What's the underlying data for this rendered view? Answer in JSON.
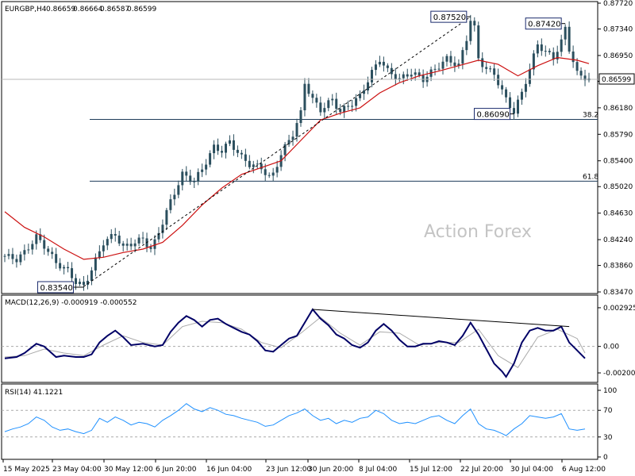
{
  "chart_data": [
    {
      "type": "candlestick",
      "header": {
        "symbol": "EURGBP,H4",
        "open": "0.86659",
        "high": "0.86664",
        "low": "0.86587",
        "close": "0.86599"
      },
      "watermark": "Action Forex",
      "current_price_label": "0.86599",
      "ylim": [
        0.8347,
        0.8772
      ],
      "y_ticks": [
        "0.87720",
        "0.87340",
        "0.86950",
        "0.86570",
        "0.86180",
        "0.85790",
        "0.85400",
        "0.85020",
        "0.84630",
        "0.84240",
        "0.83860",
        "0.83470"
      ],
      "x_ticks": [
        "15 May 2025",
        "23 May 04:00",
        "30 May 12:00",
        "6 Jun 20:00",
        "16 Jun 04:00",
        "23 Jun 12:00",
        "30 Jun 20:00",
        "8 Jul 04:00",
        "15 Jul 12:00",
        "22 Jul 20:00",
        "30 Jul 04:00",
        "6 Aug 12:00"
      ],
      "annotations": [
        {
          "text": "0.87520",
          "value": 0.8752
        },
        {
          "text": "0.87420",
          "value": 0.8742
        },
        {
          "text": "0.86090",
          "value": 0.8609
        },
        {
          "text": "0.83540",
          "value": 0.8354
        }
      ],
      "fib_levels": [
        {
          "label": "38.2",
          "value": 0.8601
        },
        {
          "label": "61.8",
          "value": 0.851
        }
      ],
      "price_path": [
        [
          0,
          0.84
        ],
        [
          3,
          0.8395
        ],
        [
          5,
          0.8405
        ],
        [
          8,
          0.8428
        ],
        [
          10,
          0.8415
        ],
        [
          13,
          0.839
        ],
        [
          16,
          0.8378
        ],
        [
          18,
          0.8362
        ],
        [
          20,
          0.8355
        ],
        [
          22,
          0.838
        ],
        [
          25,
          0.842
        ],
        [
          28,
          0.8432
        ],
        [
          30,
          0.8412
        ],
        [
          32,
          0.8418
        ],
        [
          35,
          0.8425
        ],
        [
          37,
          0.841
        ],
        [
          38,
          0.842
        ],
        [
          40,
          0.845
        ],
        [
          42,
          0.848
        ],
        [
          45,
          0.852
        ],
        [
          48,
          0.851
        ],
        [
          50,
          0.8528
        ],
        [
          53,
          0.856
        ],
        [
          55,
          0.8555
        ],
        [
          57,
          0.8568
        ],
        [
          60,
          0.8545
        ],
        [
          62,
          0.8535
        ],
        [
          65,
          0.853
        ],
        [
          67,
          0.8515
        ],
        [
          68,
          0.852
        ],
        [
          70,
          0.855
        ],
        [
          73,
          0.858
        ],
        [
          75,
          0.861
        ],
        [
          76,
          0.8655
        ],
        [
          78,
          0.863
        ],
        [
          80,
          0.8615
        ],
        [
          83,
          0.863
        ],
        [
          85,
          0.8612
        ],
        [
          88,
          0.8625
        ],
        [
          90,
          0.8635
        ],
        [
          93,
          0.867
        ],
        [
          95,
          0.869
        ],
        [
          97,
          0.8672
        ],
        [
          100,
          0.866
        ],
        [
          103,
          0.867
        ],
        [
          106,
          0.866
        ],
        [
          109,
          0.8675
        ],
        [
          112,
          0.869
        ],
        [
          115,
          0.868
        ],
        [
          117,
          0.872
        ],
        [
          118,
          0.8748
        ],
        [
          119,
          0.8735
        ],
        [
          120,
          0.869
        ],
        [
          122,
          0.8675
        ],
        [
          124,
          0.8668
        ],
        [
          127,
          0.863
        ],
        [
          129,
          0.8612
        ],
        [
          131,
          0.864
        ],
        [
          133,
          0.8675
        ],
        [
          135,
          0.8712
        ],
        [
          137,
          0.87
        ],
        [
          139,
          0.8692
        ],
        [
          141,
          0.8715
        ],
        [
          142,
          0.8735
        ],
        [
          143,
          0.8705
        ],
        [
          145,
          0.8668
        ],
        [
          147,
          0.8663
        ],
        [
          148,
          0.866
        ]
      ],
      "ma_path": [
        [
          0,
          0.8465
        ],
        [
          5,
          0.8442
        ],
        [
          10,
          0.8428
        ],
        [
          15,
          0.841
        ],
        [
          20,
          0.8395
        ],
        [
          25,
          0.8398
        ],
        [
          30,
          0.8405
        ],
        [
          35,
          0.841
        ],
        [
          40,
          0.842
        ],
        [
          45,
          0.8445
        ],
        [
          50,
          0.8475
        ],
        [
          55,
          0.85
        ],
        [
          60,
          0.852
        ],
        [
          65,
          0.853
        ],
        [
          70,
          0.854
        ],
        [
          75,
          0.857
        ],
        [
          80,
          0.86
        ],
        [
          85,
          0.861
        ],
        [
          90,
          0.8618
        ],
        [
          95,
          0.864
        ],
        [
          100,
          0.8655
        ],
        [
          105,
          0.8665
        ],
        [
          110,
          0.8672
        ],
        [
          115,
          0.868
        ],
        [
          120,
          0.8688
        ],
        [
          125,
          0.8682
        ],
        [
          130,
          0.8665
        ],
        [
          135,
          0.868
        ],
        [
          140,
          0.8692
        ],
        [
          145,
          0.8688
        ],
        [
          148,
          0.8683
        ]
      ],
      "trendline": [
        [
          20,
          0.8355
        ],
        [
          118,
          0.8752
        ]
      ]
    },
    {
      "type": "line",
      "header": "MACD(12,26,9) -0.000919 -0.000552",
      "ylim": [
        -0.0026,
        0.0034
      ],
      "y_ticks": [
        "0.002925",
        "0.00",
        "-0.002002"
      ],
      "macd_path": [
        [
          0,
          -0.0009
        ],
        [
          3,
          -0.0008
        ],
        [
          5,
          -0.0005
        ],
        [
          8,
          0.0002
        ],
        [
          10,
          0.0
        ],
        [
          13,
          -0.0008
        ],
        [
          15,
          -0.0007
        ],
        [
          18,
          -0.0008
        ],
        [
          20,
          -0.0008
        ],
        [
          22,
          -0.0006
        ],
        [
          24,
          0.0003
        ],
        [
          26,
          0.0008
        ],
        [
          28,
          0.0012
        ],
        [
          30,
          0.0007
        ],
        [
          32,
          0.0001
        ],
        [
          35,
          0.0002
        ],
        [
          38,
          0.0
        ],
        [
          40,
          0.0001
        ],
        [
          42,
          0.0011
        ],
        [
          44,
          0.0018
        ],
        [
          46,
          0.0023
        ],
        [
          48,
          0.002
        ],
        [
          50,
          0.0015
        ],
        [
          52,
          0.002
        ],
        [
          54,
          0.0021
        ],
        [
          56,
          0.0017
        ],
        [
          58,
          0.0014
        ],
        [
          60,
          0.0011
        ],
        [
          62,
          0.0009
        ],
        [
          64,
          0.0004
        ],
        [
          66,
          -0.0003
        ],
        [
          68,
          -0.0004
        ],
        [
          70,
          0.0001
        ],
        [
          72,
          0.0006
        ],
        [
          74,
          0.0008
        ],
        [
          76,
          0.0018
        ],
        [
          78,
          0.0028
        ],
        [
          80,
          0.0021
        ],
        [
          82,
          0.0016
        ],
        [
          84,
          0.0009
        ],
        [
          86,
          0.0006
        ],
        [
          88,
          0.0001
        ],
        [
          90,
          -0.0001
        ],
        [
          92,
          0.0003
        ],
        [
          94,
          0.0012
        ],
        [
          96,
          0.0017
        ],
        [
          98,
          0.0012
        ],
        [
          100,
          0.0005
        ],
        [
          102,
          0.0
        ],
        [
          104,
          0.0
        ],
        [
          106,
          0.0002
        ],
        [
          108,
          0.0002
        ],
        [
          110,
          0.0004
        ],
        [
          112,
          0.0003
        ],
        [
          114,
          0.0001
        ],
        [
          116,
          0.0008
        ],
        [
          118,
          0.0018
        ],
        [
          120,
          0.0009
        ],
        [
          122,
          -0.0002
        ],
        [
          124,
          -0.0013
        ],
        [
          126,
          -0.0019
        ],
        [
          127,
          -0.0023
        ],
        [
          129,
          -0.0013
        ],
        [
          131,
          0.0003
        ],
        [
          133,
          0.0012
        ],
        [
          135,
          0.0014
        ],
        [
          137,
          0.0012
        ],
        [
          139,
          0.0012
        ],
        [
          141,
          0.0015
        ],
        [
          143,
          0.0003
        ],
        [
          145,
          -0.0003
        ],
        [
          147,
          -0.0009
        ]
      ],
      "signal_path": [
        [
          0,
          -0.0008
        ],
        [
          5,
          -0.0007
        ],
        [
          10,
          -0.0002
        ],
        [
          15,
          -0.0005
        ],
        [
          20,
          -0.0007
        ],
        [
          25,
          0.0001
        ],
        [
          30,
          0.0008
        ],
        [
          35,
          0.0003
        ],
        [
          40,
          0.0001
        ],
        [
          45,
          0.0015
        ],
        [
          50,
          0.0019
        ],
        [
          55,
          0.0018
        ],
        [
          60,
          0.0013
        ],
        [
          65,
          0.0003
        ],
        [
          70,
          -0.0001
        ],
        [
          75,
          0.001
        ],
        [
          80,
          0.0022
        ],
        [
          85,
          0.001
        ],
        [
          90,
          0.0001
        ],
        [
          95,
          0.0011
        ],
        [
          100,
          0.001
        ],
        [
          105,
          0.0001
        ],
        [
          110,
          0.0003
        ],
        [
          115,
          0.0003
        ],
        [
          120,
          0.0013
        ],
        [
          125,
          -0.0007
        ],
        [
          130,
          -0.0016
        ],
        [
          135,
          0.0007
        ],
        [
          140,
          0.0013
        ],
        [
          145,
          0.0006
        ],
        [
          147,
          -0.0005
        ]
      ],
      "trendline": [
        [
          78,
          0.0028
        ],
        [
          143,
          0.0015
        ]
      ]
    },
    {
      "type": "line",
      "header": "RSI(14) 41.1221",
      "ylim": [
        0,
        100
      ],
      "y_ticks": [
        "100",
        "70",
        "30",
        "0"
      ],
      "levels": [
        70,
        30
      ],
      "rsi_path": [
        [
          0,
          38
        ],
        [
          2,
          42
        ],
        [
          4,
          45
        ],
        [
          6,
          50
        ],
        [
          8,
          60
        ],
        [
          10,
          55
        ],
        [
          12,
          45
        ],
        [
          14,
          40
        ],
        [
          16,
          42
        ],
        [
          18,
          38
        ],
        [
          20,
          35
        ],
        [
          22,
          40
        ],
        [
          24,
          58
        ],
        [
          26,
          52
        ],
        [
          28,
          60
        ],
        [
          30,
          55
        ],
        [
          32,
          48
        ],
        [
          34,
          52
        ],
        [
          36,
          50
        ],
        [
          38,
          45
        ],
        [
          40,
          55
        ],
        [
          42,
          62
        ],
        [
          44,
          70
        ],
        [
          46,
          80
        ],
        [
          48,
          72
        ],
        [
          50,
          68
        ],
        [
          52,
          74
        ],
        [
          54,
          70
        ],
        [
          56,
          64
        ],
        [
          58,
          62
        ],
        [
          60,
          58
        ],
        [
          62,
          55
        ],
        [
          64,
          52
        ],
        [
          66,
          46
        ],
        [
          68,
          48
        ],
        [
          70,
          55
        ],
        [
          72,
          62
        ],
        [
          74,
          66
        ],
        [
          76,
          72
        ],
        [
          78,
          62
        ],
        [
          80,
          55
        ],
        [
          82,
          58
        ],
        [
          84,
          50
        ],
        [
          86,
          55
        ],
        [
          88,
          52
        ],
        [
          90,
          58
        ],
        [
          92,
          60
        ],
        [
          94,
          70
        ],
        [
          96,
          65
        ],
        [
          98,
          55
        ],
        [
          100,
          50
        ],
        [
          102,
          52
        ],
        [
          104,
          50
        ],
        [
          106,
          55
        ],
        [
          108,
          60
        ],
        [
          110,
          62
        ],
        [
          112,
          55
        ],
        [
          114,
          50
        ],
        [
          116,
          62
        ],
        [
          118,
          72
        ],
        [
          120,
          50
        ],
        [
          122,
          42
        ],
        [
          124,
          40
        ],
        [
          126,
          35
        ],
        [
          127,
          32
        ],
        [
          129,
          42
        ],
        [
          131,
          50
        ],
        [
          133,
          62
        ],
        [
          135,
          60
        ],
        [
          137,
          58
        ],
        [
          139,
          60
        ],
        [
          141,
          65
        ],
        [
          143,
          42
        ],
        [
          145,
          40
        ],
        [
          147,
          42
        ]
      ]
    }
  ]
}
